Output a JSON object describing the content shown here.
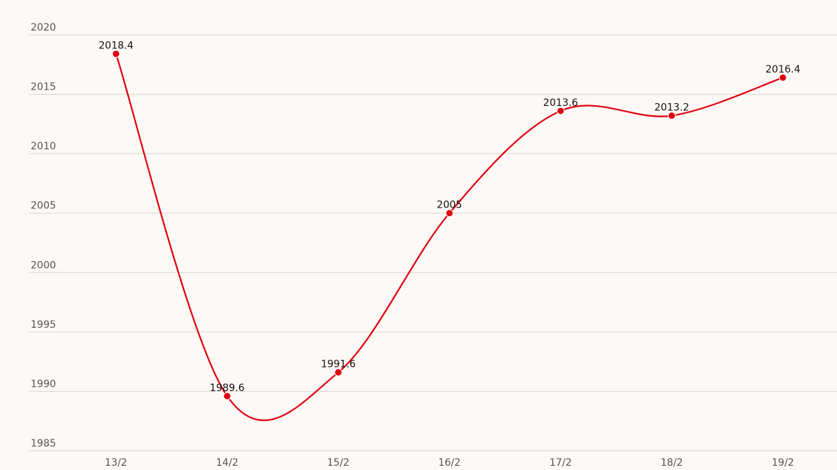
{
  "chart_data": {
    "type": "line",
    "categories": [
      "13/2",
      "14/2",
      "15/2",
      "16/2",
      "17/2",
      "18/2",
      "19/2"
    ],
    "series": [
      {
        "color": "#e0000f",
        "values": [
          2018.4,
          1989.6,
          1991.6,
          2005,
          2013.6,
          2013.2,
          2016.4
        ]
      }
    ],
    "ylim": [
      1985,
      2020
    ],
    "yticks": [
      1985,
      1990,
      1995,
      2000,
      2005,
      2010,
      2015,
      2020
    ],
    "grid": true
  }
}
